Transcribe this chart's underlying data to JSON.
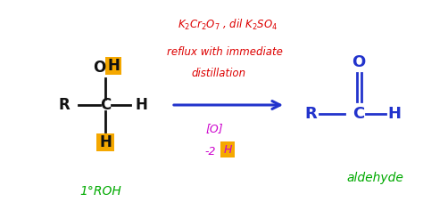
{
  "bg_color": "#ffffff",
  "reagent_line1": "$K_2Cr_2O_7$ , dil $K_2SO_4$",
  "reagent_line2": "reflux with immediate",
  "reagent_line3": "distillation",
  "reagent_color": "#dd0000",
  "arrow_color": "#2233cc",
  "below_arrow_color": "#cc00cc",
  "highlight_color": "#f5a800",
  "label_1ROH_color": "#00aa00",
  "aldehyde_color": "#00aa00",
  "product_color": "#2233cc",
  "mol_color": "#111111"
}
